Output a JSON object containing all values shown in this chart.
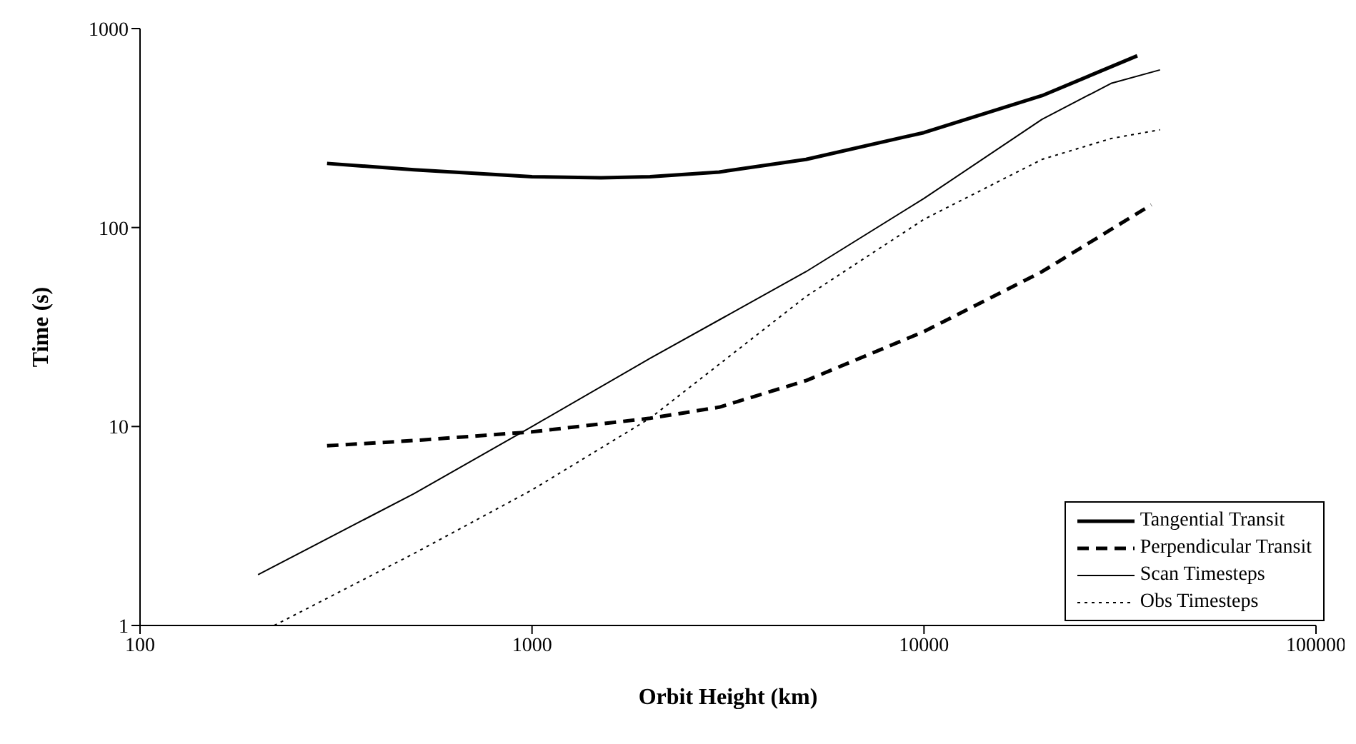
{
  "chart_data": {
    "type": "line",
    "xlabel": "Orbit Height (km)",
    "ylabel": "Time (s)",
    "log": "xy",
    "xlim": [
      100,
      100000
    ],
    "xticks": [
      100,
      1000,
      10000,
      100000
    ],
    "ylim": [
      1,
      1000
    ],
    "yticks": [
      1,
      10,
      100,
      1000
    ],
    "grid": false,
    "legend": "bottom right",
    "marker": "none",
    "series": [
      {
        "name": "Tangential Transit",
        "color": "#000000",
        "line_style": "solid",
        "x": [
          300,
          500,
          1000,
          1500,
          2000,
          3000,
          5000,
          10000,
          20000,
          35000
        ],
        "values": [
          210,
          195,
          180,
          178,
          180,
          190,
          220,
          300,
          460,
          730
        ]
      },
      {
        "name": "Perpendicular Transit",
        "color": "#000000",
        "line_style": "dashed",
        "x": [
          300,
          500,
          1000,
          2000,
          3000,
          5000,
          10000,
          20000,
          38000
        ],
        "values": [
          8,
          8.5,
          9.4,
          11,
          12.5,
          17,
          30,
          60,
          130
        ]
      },
      {
        "name": "Scan Timesteps",
        "color": "#000000",
        "line_style": "solid",
        "x": [
          200,
          500,
          1000,
          2000,
          5000,
          10000,
          20000,
          30000,
          40000
        ],
        "values": [
          1.8,
          4.6,
          10,
          22,
          60,
          140,
          350,
          530,
          620
        ]
      },
      {
        "name": "Obs Timesteps",
        "color": "#000000",
        "line_style": "dotted",
        "x": [
          220,
          500,
          1000,
          2000,
          5000,
          10000,
          20000,
          30000,
          40000
        ],
        "values": [
          1,
          2.3,
          4.8,
          11,
          45,
          110,
          220,
          280,
          310
        ]
      }
    ]
  }
}
